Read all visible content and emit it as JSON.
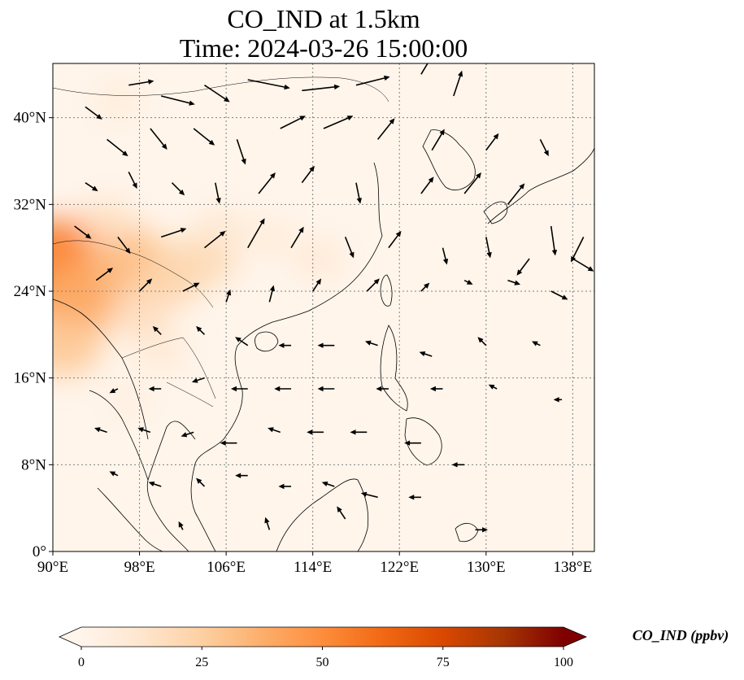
{
  "title": {
    "line1": "CO_IND at 1.5km",
    "line2": "Time: 2024-03-26 15:00:00"
  },
  "map": {
    "lon_range": [
      90,
      140
    ],
    "lat_range": [
      0,
      45
    ],
    "lon_ticks": [
      {
        "value": 90,
        "label": "90°E"
      },
      {
        "value": 98,
        "label": "98°E"
      },
      {
        "value": 106,
        "label": "106°E"
      },
      {
        "value": 114,
        "label": "114°E"
      },
      {
        "value": 122,
        "label": "122°E"
      },
      {
        "value": 130,
        "label": "130°E"
      },
      {
        "value": 138,
        "label": "138°E"
      }
    ],
    "lat_ticks": [
      {
        "value": 0,
        "label": "0°"
      },
      {
        "value": 8,
        "label": "8°N"
      },
      {
        "value": 16,
        "label": "16°N"
      },
      {
        "value": 24,
        "label": "24°N"
      },
      {
        "value": 32,
        "label": "32°N"
      },
      {
        "value": 40,
        "label": "40°N"
      }
    ],
    "gridlines": true,
    "colors": {
      "ocean_background": "#fff5eb",
      "coastline": "#000000",
      "gridline": "#7f7f7f",
      "wind_vector": "#000000"
    },
    "concentration_field": [
      {
        "lon": 91.0,
        "lat": 26.0,
        "value": 62
      },
      {
        "lon": 93.5,
        "lat": 27.0,
        "value": 50
      },
      {
        "lon": 92.0,
        "lat": 23.0,
        "value": 38
      },
      {
        "lon": 91.0,
        "lat": 19.0,
        "value": 28
      },
      {
        "lon": 97.0,
        "lat": 27.0,
        "value": 30
      },
      {
        "lon": 101.0,
        "lat": 25.5,
        "value": 24
      },
      {
        "lon": 104.0,
        "lat": 27.0,
        "value": 20
      },
      {
        "lon": 98.0,
        "lat": 22.0,
        "value": 18
      },
      {
        "lon": 95.0,
        "lat": 30.5,
        "value": 14
      },
      {
        "lon": 105.5,
        "lat": 30.0,
        "value": 10
      },
      {
        "lon": 110.0,
        "lat": 29.0,
        "value": 8
      },
      {
        "lon": 114.5,
        "lat": 27.0,
        "value": 10
      },
      {
        "lon": 96.0,
        "lat": 41.5,
        "value": 8
      },
      {
        "lon": 100.0,
        "lat": 18.5,
        "value": 10
      },
      {
        "lon": 97.0,
        "lat": 14.0,
        "value": 6
      }
    ],
    "wind_vectors": [
      {
        "lon": 93,
        "lat": 41,
        "u": 4,
        "v": -3
      },
      {
        "lon": 97,
        "lat": 43,
        "u": 6,
        "v": 1
      },
      {
        "lon": 100,
        "lat": 42,
        "u": 8,
        "v": -2
      },
      {
        "lon": 104,
        "lat": 43,
        "u": 6,
        "v": -4
      },
      {
        "lon": 108,
        "lat": 43.5,
        "u": 10,
        "v": -2
      },
      {
        "lon": 113,
        "lat": 42.5,
        "u": 9,
        "v": 1
      },
      {
        "lon": 118,
        "lat": 43,
        "u": 8,
        "v": 2
      },
      {
        "lon": 124,
        "lat": 44,
        "u": 3,
        "v": 5
      },
      {
        "lon": 127,
        "lat": 42,
        "u": 2,
        "v": 6
      },
      {
        "lon": 95,
        "lat": 38,
        "u": 5,
        "v": -4
      },
      {
        "lon": 99,
        "lat": 39,
        "u": 4,
        "v": -5
      },
      {
        "lon": 103,
        "lat": 39,
        "u": 5,
        "v": -4
      },
      {
        "lon": 107,
        "lat": 38,
        "u": 2,
        "v": -6
      },
      {
        "lon": 111,
        "lat": 39,
        "u": 6,
        "v": 3
      },
      {
        "lon": 115,
        "lat": 39,
        "u": 7,
        "v": 3
      },
      {
        "lon": 120,
        "lat": 38,
        "u": 4,
        "v": 5
      },
      {
        "lon": 125,
        "lat": 37,
        "u": 3,
        "v": 5
      },
      {
        "lon": 130,
        "lat": 37,
        "u": 3,
        "v": 4
      },
      {
        "lon": 135,
        "lat": 38,
        "u": 2,
        "v": -4
      },
      {
        "lon": 93,
        "lat": 34,
        "u": 3,
        "v": -2
      },
      {
        "lon": 97,
        "lat": 35,
        "u": 2,
        "v": -4
      },
      {
        "lon": 101,
        "lat": 34,
        "u": 3,
        "v": -3
      },
      {
        "lon": 105,
        "lat": 34,
        "u": 1,
        "v": -5
      },
      {
        "lon": 109,
        "lat": 33,
        "u": 4,
        "v": 5
      },
      {
        "lon": 113,
        "lat": 34,
        "u": 3,
        "v": 4
      },
      {
        "lon": 118,
        "lat": 34,
        "u": 1,
        "v": -5
      },
      {
        "lon": 124,
        "lat": 33,
        "u": 3,
        "v": 4
      },
      {
        "lon": 128,
        "lat": 33,
        "u": 4,
        "v": 5
      },
      {
        "lon": 132,
        "lat": 32,
        "u": 4,
        "v": 5
      },
      {
        "lon": 136,
        "lat": 30,
        "u": 1,
        "v": -7
      },
      {
        "lon": 139,
        "lat": 29,
        "u": -3,
        "v": -6
      },
      {
        "lon": 92,
        "lat": 30,
        "u": 4,
        "v": -3
      },
      {
        "lon": 96,
        "lat": 29,
        "u": 3,
        "v": -4
      },
      {
        "lon": 100,
        "lat": 29,
        "u": 6,
        "v": 2
      },
      {
        "lon": 104,
        "lat": 28,
        "u": 5,
        "v": 4
      },
      {
        "lon": 108,
        "lat": 28,
        "u": 4,
        "v": 7
      },
      {
        "lon": 112,
        "lat": 28,
        "u": 3,
        "v": 5
      },
      {
        "lon": 117,
        "lat": 29,
        "u": 2,
        "v": -5
      },
      {
        "lon": 121,
        "lat": 28,
        "u": 3,
        "v": 4
      },
      {
        "lon": 126,
        "lat": 28,
        "u": 1,
        "v": -4
      },
      {
        "lon": 130,
        "lat": 29,
        "u": 1,
        "v": -5
      },
      {
        "lon": 134,
        "lat": 27,
        "u": -3,
        "v": -4
      },
      {
        "lon": 138,
        "lat": 27,
        "u": 5,
        "v": -3
      },
      {
        "lon": 94,
        "lat": 25,
        "u": 4,
        "v": 3
      },
      {
        "lon": 98,
        "lat": 24,
        "u": 3,
        "v": 3
      },
      {
        "lon": 102,
        "lat": 24,
        "u": 4,
        "v": 2
      },
      {
        "lon": 106,
        "lat": 23,
        "u": 1,
        "v": 3
      },
      {
        "lon": 110,
        "lat": 23,
        "u": 1,
        "v": 4
      },
      {
        "lon": 114,
        "lat": 24,
        "u": 2,
        "v": 3
      },
      {
        "lon": 119,
        "lat": 24,
        "u": 3,
        "v": 3
      },
      {
        "lon": 124,
        "lat": 24,
        "u": 2,
        "v": 2
      },
      {
        "lon": 128,
        "lat": 25,
        "u": 2,
        "v": -1
      },
      {
        "lon": 132,
        "lat": 25,
        "u": 3,
        "v": -1
      },
      {
        "lon": 136,
        "lat": 24,
        "u": 4,
        "v": -2
      },
      {
        "lon": 100,
        "lat": 20,
        "u": -2,
        "v": 2
      },
      {
        "lon": 104,
        "lat": 20,
        "u": -2,
        "v": 2
      },
      {
        "lon": 108,
        "lat": 19,
        "u": -3,
        "v": 2
      },
      {
        "lon": 112,
        "lat": 19,
        "u": -3,
        "v": 0
      },
      {
        "lon": 116,
        "lat": 19,
        "u": -4,
        "v": 0
      },
      {
        "lon": 120,
        "lat": 19,
        "u": -3,
        "v": 1
      },
      {
        "lon": 125,
        "lat": 18,
        "u": -3,
        "v": 1
      },
      {
        "lon": 130,
        "lat": 19,
        "u": -2,
        "v": 2
      },
      {
        "lon": 135,
        "lat": 19,
        "u": -2,
        "v": 1
      },
      {
        "lon": 96,
        "lat": 15,
        "u": -2,
        "v": -1
      },
      {
        "lon": 100,
        "lat": 15,
        "u": -3,
        "v": 0
      },
      {
        "lon": 104,
        "lat": 16,
        "u": -3,
        "v": -1
      },
      {
        "lon": 108,
        "lat": 15,
        "u": -4,
        "v": 0
      },
      {
        "lon": 112,
        "lat": 15,
        "u": -4,
        "v": 0
      },
      {
        "lon": 116,
        "lat": 15,
        "u": -4,
        "v": 0
      },
      {
        "lon": 121,
        "lat": 15,
        "u": -3,
        "v": 0
      },
      {
        "lon": 126,
        "lat": 15,
        "u": -3,
        "v": 0
      },
      {
        "lon": 131,
        "lat": 15,
        "u": -2,
        "v": 1
      },
      {
        "lon": 137,
        "lat": 14,
        "u": -2,
        "v": 0
      },
      {
        "lon": 95,
        "lat": 11,
        "u": -3,
        "v": 1
      },
      {
        "lon": 99,
        "lat": 11,
        "u": -3,
        "v": 1
      },
      {
        "lon": 103,
        "lat": 11,
        "u": -3,
        "v": -1
      },
      {
        "lon": 107,
        "lat": 10,
        "u": -4,
        "v": 0
      },
      {
        "lon": 111,
        "lat": 11,
        "u": -3,
        "v": 1
      },
      {
        "lon": 115,
        "lat": 11,
        "u": -4,
        "v": 0
      },
      {
        "lon": 119,
        "lat": 11,
        "u": -4,
        "v": 0
      },
      {
        "lon": 124,
        "lat": 10,
        "u": -4,
        "v": 0
      },
      {
        "lon": 128,
        "lat": 8,
        "u": -3,
        "v": 0
      },
      {
        "lon": 96,
        "lat": 7,
        "u": -2,
        "v": 1
      },
      {
        "lon": 100,
        "lat": 6,
        "u": -3,
        "v": 1
      },
      {
        "lon": 104,
        "lat": 6,
        "u": -2,
        "v": 2
      },
      {
        "lon": 108,
        "lat": 7,
        "u": -3,
        "v": 0
      },
      {
        "lon": 112,
        "lat": 6,
        "u": -3,
        "v": 0
      },
      {
        "lon": 116,
        "lat": 6,
        "u": -3,
        "v": 1
      },
      {
        "lon": 120,
        "lat": 5,
        "u": -4,
        "v": 1
      },
      {
        "lon": 124,
        "lat": 5,
        "u": -3,
        "v": 0
      },
      {
        "lon": 129,
        "lat": 2,
        "u": 3,
        "v": 0
      },
      {
        "lon": 102,
        "lat": 2,
        "u": -1,
        "v": 2
      },
      {
        "lon": 110,
        "lat": 2,
        "u": -1,
        "v": 3
      },
      {
        "lon": 117,
        "lat": 3,
        "u": -2,
        "v": 3
      }
    ]
  },
  "colorbar": {
    "label": "CO_IND (ppbv)",
    "min": 0,
    "max": 100,
    "extend": "both",
    "ticks": [
      {
        "value": 0,
        "label": "0"
      },
      {
        "value": 25,
        "label": "25"
      },
      {
        "value": 50,
        "label": "50"
      },
      {
        "value": 75,
        "label": "75"
      },
      {
        "value": 100,
        "label": "100"
      }
    ],
    "stops": [
      {
        "value": 0,
        "color": "#fff5eb"
      },
      {
        "value": 12.5,
        "color": "#fee6ce"
      },
      {
        "value": 25,
        "color": "#fdd0a2"
      },
      {
        "value": 37.5,
        "color": "#fdae6b"
      },
      {
        "value": 50,
        "color": "#fd8d3c"
      },
      {
        "value": 62.5,
        "color": "#f16913"
      },
      {
        "value": 75,
        "color": "#d94801"
      },
      {
        "value": 87.5,
        "color": "#a63603"
      },
      {
        "value": 100,
        "color": "#7f0000"
      }
    ]
  }
}
